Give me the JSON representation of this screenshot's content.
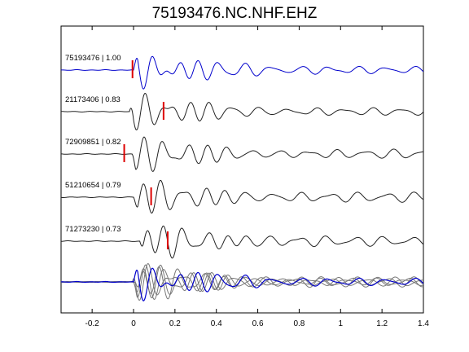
{
  "chart_data": {
    "type": "line",
    "title": "75193476.NC.NHF.EHZ",
    "xlabel": "",
    "ylabel": "",
    "xlim": [
      -0.35,
      1.4
    ],
    "xticks": [
      {
        "value": -0.2,
        "label": "-0.2"
      },
      {
        "value": 0,
        "label": "0"
      },
      {
        "value": 0.2,
        "label": "0.2"
      },
      {
        "value": 0.4,
        "label": "0.4"
      },
      {
        "value": 0.6,
        "label": "0.6"
      },
      {
        "value": 0.8,
        "label": "0.8"
      },
      {
        "value": 1.0,
        "label": "1"
      },
      {
        "value": 1.2,
        "label": "1.2"
      },
      {
        "value": 1.4,
        "label": "1.4"
      }
    ],
    "grid": false,
    "colors": {
      "reference": "#0000cc",
      "trace": "#222222",
      "overlay_trace": "#777777",
      "pick": "#dd0000"
    },
    "traces": [
      {
        "id": "75193476",
        "cc": "1.00",
        "label": "75193476 | 1.00",
        "pick_time": -0.005,
        "onset": 0.0,
        "reference": true
      },
      {
        "id": "21173406",
        "cc": "0.83",
        "label": "21173406 | 0.83",
        "pick_time": 0.145,
        "onset": -0.02,
        "reference": false
      },
      {
        "id": "72909851",
        "cc": "0.82",
        "label": "72909851 | 0.82",
        "pick_time": -0.045,
        "onset": -0.01,
        "reference": false
      },
      {
        "id": "51210654",
        "cc": "0.79",
        "label": "51210654 | 0.79",
        "pick_time": 0.085,
        "onset": 0.0,
        "reference": false
      },
      {
        "id": "71273230",
        "cc": "0.73",
        "label": "71273230 | 0.73",
        "pick_time": 0.165,
        "onset": 0.03,
        "reference": false
      }
    ],
    "overlay": {
      "includes_all_traces": true
    }
  }
}
